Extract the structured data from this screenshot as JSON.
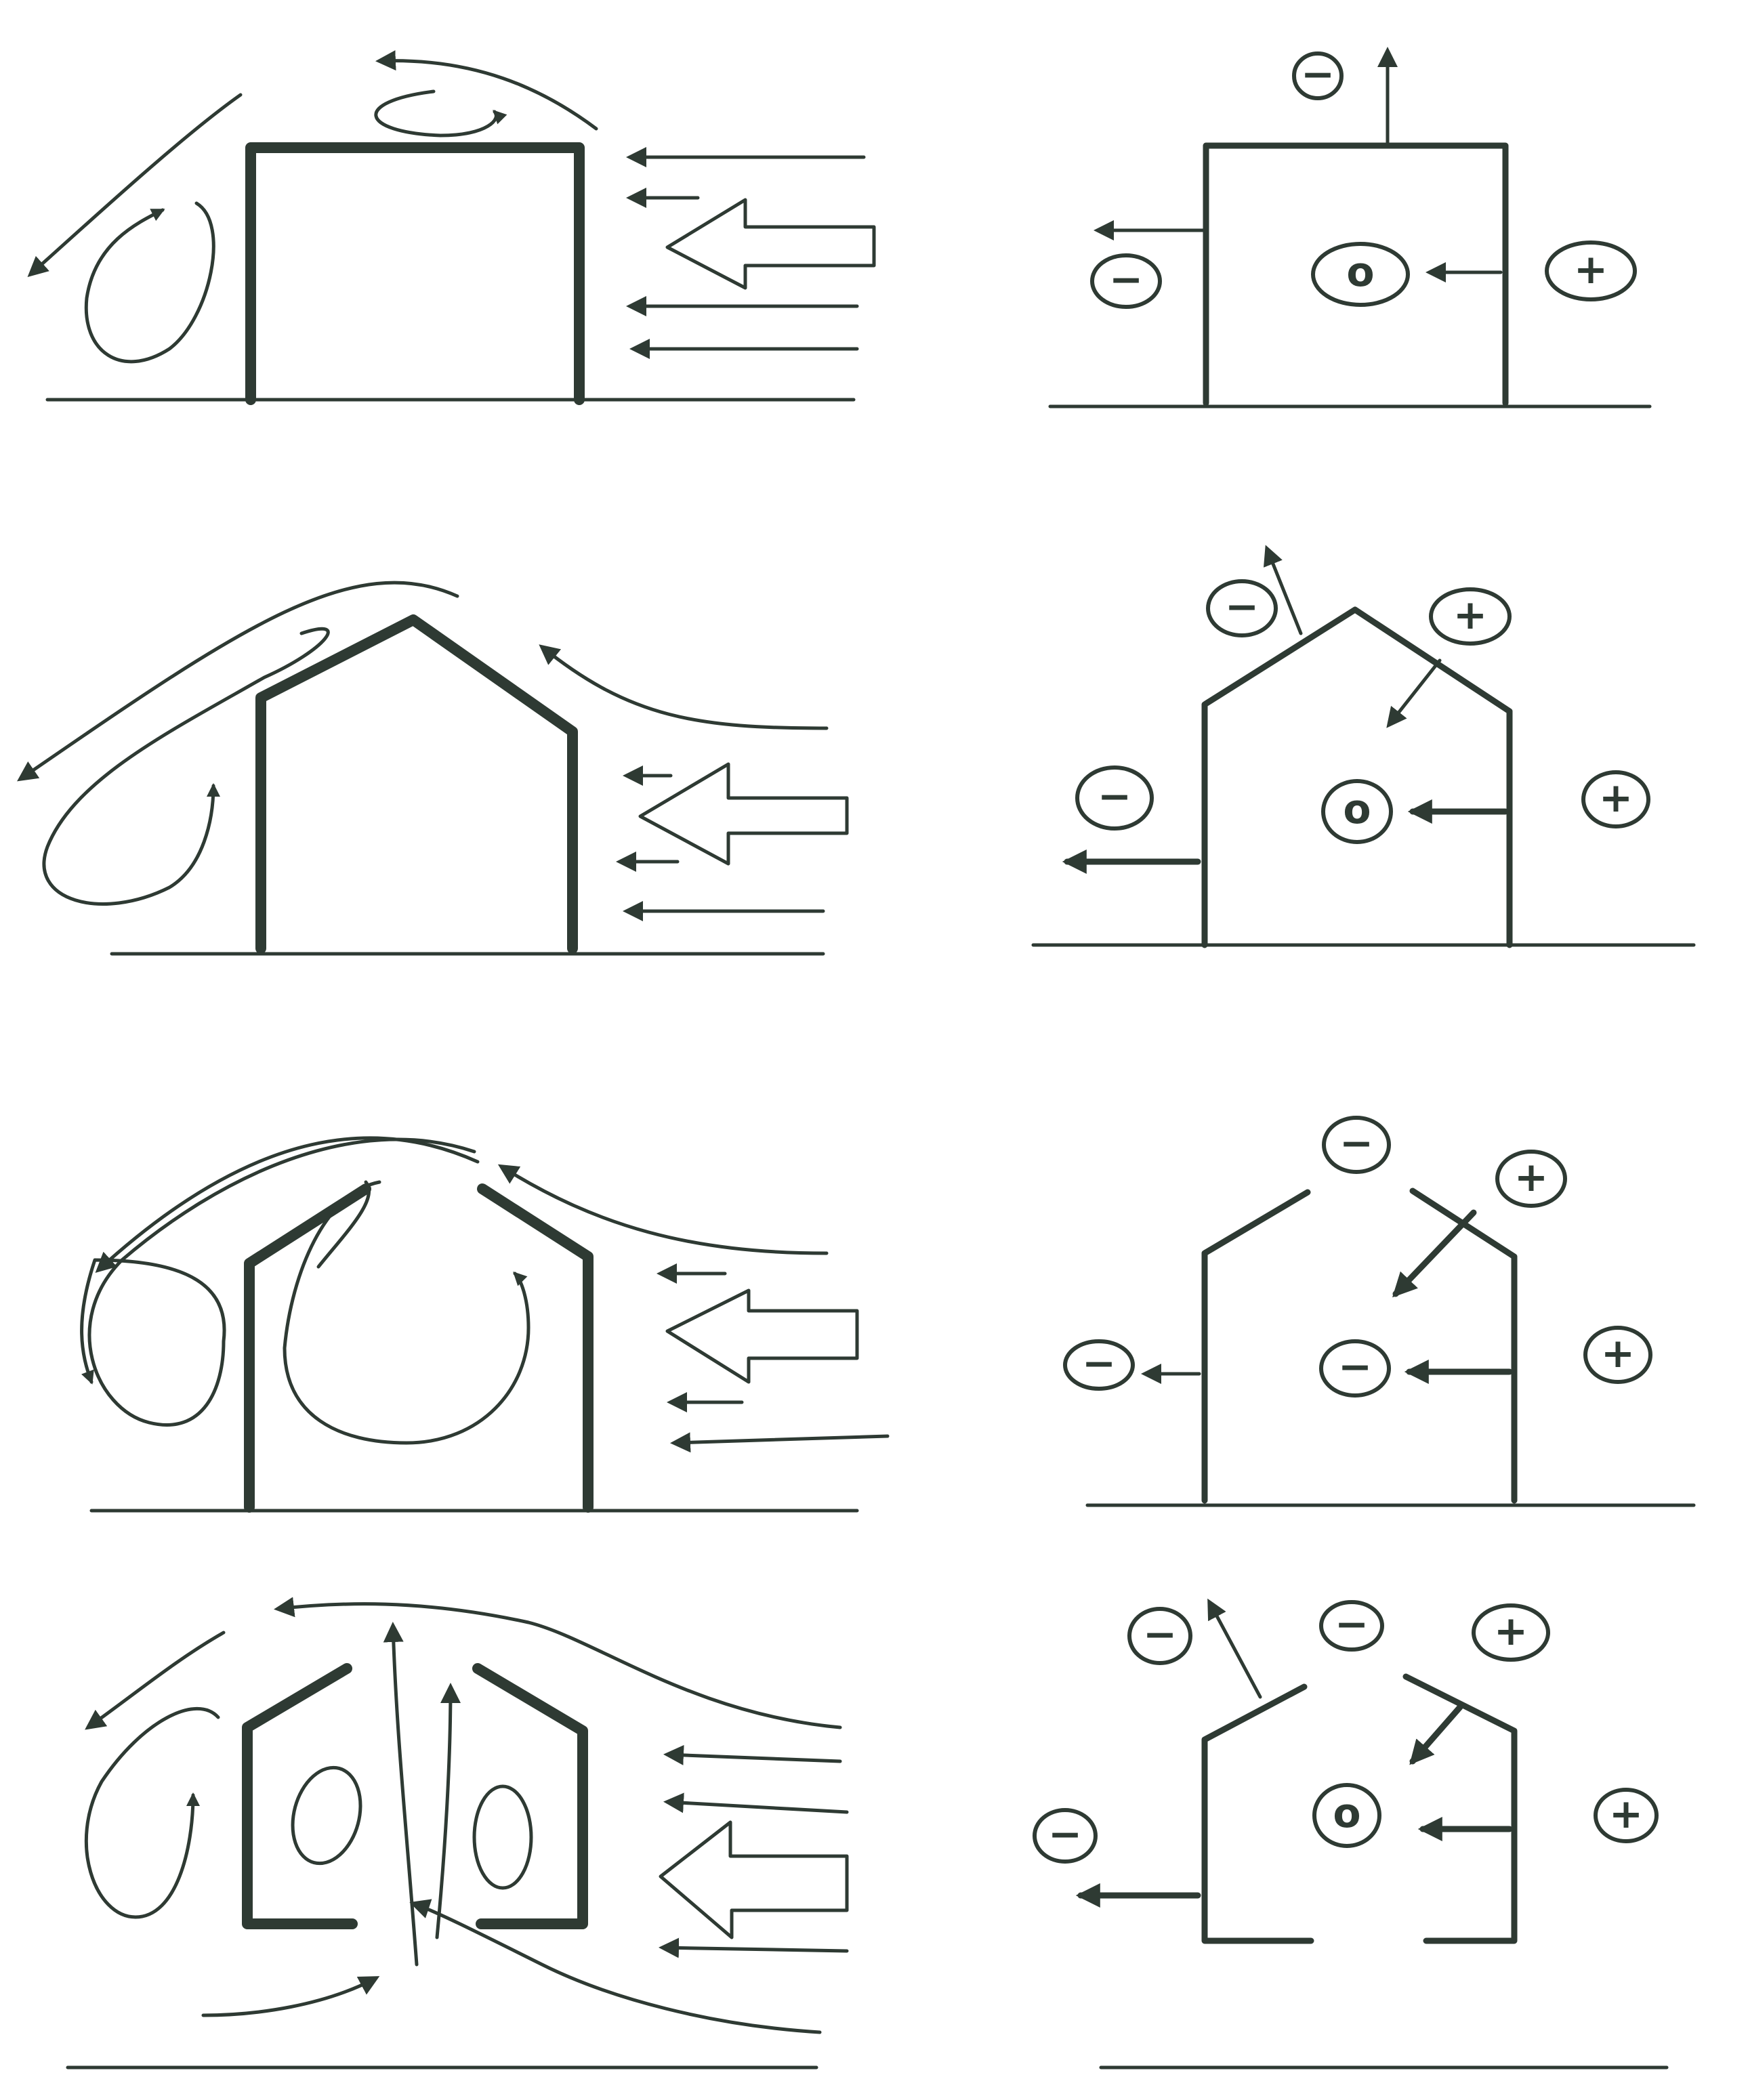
{
  "colors": {
    "ink": "#2e3a33",
    "paper": "#ffffff"
  },
  "pressure_symbols": {
    "minus": "−",
    "plus": "+",
    "zero": "o"
  },
  "rows": [
    {
      "id": "flat-roof"
    },
    {
      "id": "gable-roof"
    },
    {
      "id": "open-ridge"
    },
    {
      "id": "open-ridge-floor"
    }
  ]
}
